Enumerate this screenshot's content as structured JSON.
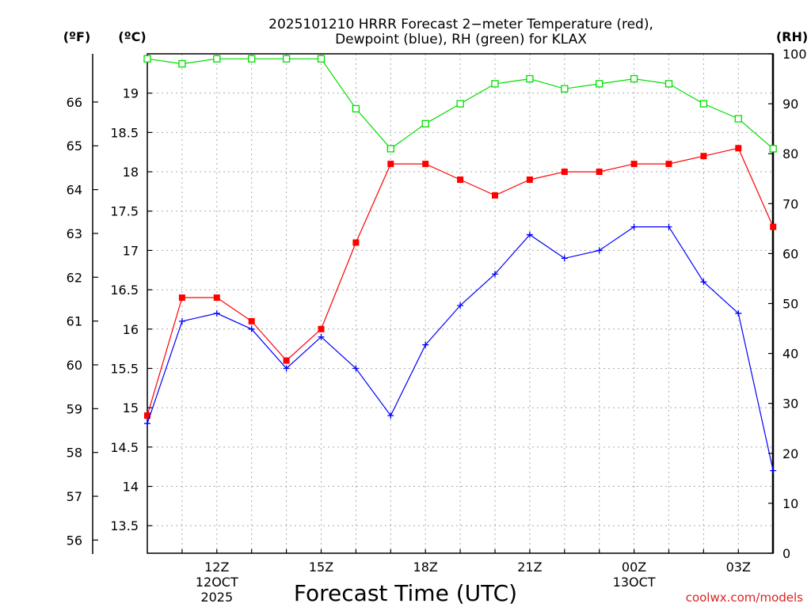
{
  "chart_data": {
    "type": "line",
    "title": "2025101210 HRRR Forecast 2−meter Temperature (red),",
    "subtitle": "Dewpoint (blue), RH (green) for KLAX",
    "xlabel": "Forecast Time (UTC)",
    "credit": "coolwx.com/models",
    "x": [
      "10Z",
      "11Z",
      "12Z",
      "13Z",
      "14Z",
      "15Z",
      "16Z",
      "17Z",
      "18Z",
      "19Z",
      "20Z",
      "21Z",
      "22Z",
      "23Z",
      "00Z",
      "01Z",
      "02Z",
      "03Z",
      "04Z"
    ],
    "xticks": [
      {
        "hour": "12Z",
        "line2": "12OCT",
        "line3": "2025"
      },
      {
        "hour": "15Z",
        "line2": "",
        "line3": ""
      },
      {
        "hour": "18Z",
        "line2": "",
        "line3": ""
      },
      {
        "hour": "21Z",
        "line2": "",
        "line3": ""
      },
      {
        "hour": "00Z",
        "line2": "13OCT",
        "line3": ""
      },
      {
        "hour": "03Z",
        "line2": "",
        "line3": ""
      }
    ],
    "axes": {
      "fahrenheit": {
        "label": "(ºF)",
        "range": [
          55.7,
          67.1
        ],
        "ticks": [
          "56",
          "57",
          "58",
          "59",
          "60",
          "61",
          "62",
          "63",
          "64",
          "65",
          "66"
        ]
      },
      "celsius": {
        "label": "(ºC)",
        "range": [
          13.15,
          19.5
        ],
        "ticks": [
          "13.5",
          "14",
          "14.5",
          "15",
          "15.5",
          "16",
          "16.5",
          "17",
          "17.5",
          "18",
          "18.5",
          "19"
        ]
      },
      "rh": {
        "label": "(RH)",
        "range": [
          0,
          100
        ],
        "ticks": [
          "0",
          "10",
          "20",
          "30",
          "40",
          "50",
          "60",
          "70",
          "80",
          "90",
          "100"
        ]
      }
    },
    "grid": true,
    "series": [
      {
        "name": "Temperature",
        "color": "#ff0000",
        "axis": "celsius",
        "marker": "filled-square",
        "values": [
          14.9,
          16.4,
          16.4,
          16.1,
          15.6,
          16.0,
          17.1,
          18.1,
          18.1,
          17.9,
          17.7,
          17.9,
          18.0,
          18.0,
          18.1,
          18.1,
          18.2,
          18.3,
          17.3
        ]
      },
      {
        "name": "Dewpoint",
        "color": "#0000ff",
        "axis": "celsius",
        "marker": "plus",
        "values": [
          14.8,
          16.1,
          16.2,
          16.0,
          15.5,
          15.9,
          15.5,
          14.9,
          15.8,
          16.3,
          16.7,
          17.2,
          16.9,
          17.0,
          17.3,
          17.3,
          16.6,
          16.2,
          14.2
        ]
      },
      {
        "name": "RH",
        "color": "#00dd00",
        "axis": "rh",
        "marker": "open-square",
        "values": [
          99,
          98,
          99,
          99,
          99,
          99,
          89,
          81,
          86,
          90,
          94,
          95,
          93,
          94,
          95,
          94,
          90,
          87,
          81
        ]
      }
    ]
  }
}
